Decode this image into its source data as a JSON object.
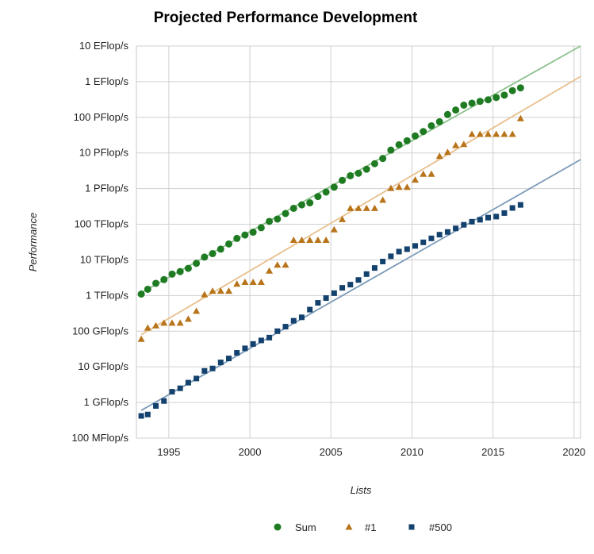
{
  "chart_data": {
    "type": "scatter",
    "title": "Projected Performance Development",
    "xlabel": "Lists",
    "ylabel": "Performance",
    "xlim": [
      1993,
      2020.4
    ],
    "y_scale": "log",
    "y_unit": "GFlop/s",
    "ylim": [
      0.1,
      10000000000
    ],
    "x_ticks": [
      1995,
      2000,
      2005,
      2010,
      2015,
      2020
    ],
    "y_ticks": [
      {
        "value": 10000000000,
        "label": "10 EFlop/s"
      },
      {
        "value": 1000000000,
        "label": "1 EFlop/s"
      },
      {
        "value": 100000000,
        "label": "100 PFlop/s"
      },
      {
        "value": 10000000,
        "label": "10 PFlop/s"
      },
      {
        "value": 1000000,
        "label": "1 PFlop/s"
      },
      {
        "value": 100000,
        "label": "100 TFlop/s"
      },
      {
        "value": 10000,
        "label": "10 TFlop/s"
      },
      {
        "value": 1000,
        "label": "1 TFlop/s"
      },
      {
        "value": 100,
        "label": "100 GFlop/s"
      },
      {
        "value": 10,
        "label": "10 GFlop/s"
      },
      {
        "value": 1,
        "label": "1 GFlop/s"
      },
      {
        "value": 0.1,
        "label": "100 MFlop/s"
      }
    ],
    "grid": true,
    "legend_position": "bottom",
    "series": [
      {
        "name": "Sum",
        "marker": "circle",
        "color": "#1e7b22",
        "x": [
          1993.3,
          1993.7,
          1994.2,
          1994.7,
          1995.2,
          1995.7,
          1996.2,
          1996.7,
          1997.2,
          1997.7,
          1998.2,
          1998.7,
          1999.2,
          1999.7,
          2000.2,
          2000.7,
          2001.2,
          2001.7,
          2002.2,
          2002.7,
          2003.2,
          2003.7,
          2004.2,
          2004.7,
          2005.2,
          2005.7,
          2006.2,
          2006.7,
          2007.2,
          2007.7,
          2008.2,
          2008.7,
          2009.2,
          2009.7,
          2010.2,
          2010.7,
          2011.2,
          2011.7,
          2012.2,
          2012.7,
          2013.2,
          2013.7,
          2014.2,
          2014.7,
          2015.2,
          2015.7,
          2016.2,
          2016.7
        ],
        "y": [
          1100,
          1500,
          2200,
          2800,
          4000,
          4700,
          5800,
          8000,
          12000,
          15000,
          20000,
          28000,
          40000,
          50000,
          60000,
          80000,
          120000,
          140000,
          200000,
          280000,
          350000,
          400000,
          600000,
          800000,
          1100000,
          1700000,
          2300000,
          2700000,
          3500000,
          5000000,
          7000000,
          12000000,
          17000000,
          22000000,
          30000000,
          40000000,
          58000000,
          75000000,
          120000000,
          160000000,
          220000000,
          250000000,
          280000000,
          310000000,
          360000000,
          420000000,
          560000000,
          670000000
        ],
        "fit": [
          [
            1993.3,
            1200
          ],
          [
            2020.4,
            10000000000
          ]
        ]
      },
      {
        "name": "#1",
        "marker": "triangle",
        "color": "#b8741a",
        "x": [
          1993.3,
          1993.7,
          1994.2,
          1994.7,
          1995.2,
          1995.7,
          1996.2,
          1996.7,
          1997.2,
          1997.7,
          1998.2,
          1998.7,
          1999.2,
          1999.7,
          2000.2,
          2000.7,
          2001.2,
          2001.7,
          2002.2,
          2002.7,
          2003.2,
          2003.7,
          2004.2,
          2004.7,
          2005.2,
          2005.7,
          2006.2,
          2006.7,
          2007.2,
          2007.7,
          2008.2,
          2008.7,
          2009.2,
          2009.7,
          2010.2,
          2010.7,
          2011.2,
          2011.7,
          2012.2,
          2012.7,
          2013.2,
          2013.7,
          2014.2,
          2014.7,
          2015.2,
          2015.7,
          2016.2,
          2016.7
        ],
        "y": [
          60,
          124,
          143,
          170,
          170,
          170,
          220,
          368,
          1068,
          1338,
          1338,
          1338,
          2121,
          2379,
          2379,
          2379,
          4938,
          7226,
          7226,
          35860,
          35860,
          35860,
          35860,
          35860,
          70720,
          136800,
          280600,
          280600,
          280600,
          280600,
          478200,
          1026000,
          1105000,
          1105000,
          1759000,
          2566000,
          2566000,
          8162000,
          10510000,
          16320000,
          17590000,
          33860000,
          33860000,
          33860000,
          33860000,
          33860000,
          33860000,
          93010000
        ],
        "fit": [
          [
            1993.3,
            80
          ],
          [
            2020.4,
            1400000000
          ]
        ]
      },
      {
        "name": "#500",
        "marker": "square",
        "color": "#14426e",
        "x": [
          1993.3,
          1993.7,
          1994.2,
          1994.7,
          1995.2,
          1995.7,
          1996.2,
          1996.7,
          1997.2,
          1997.7,
          1998.2,
          1998.7,
          1999.2,
          1999.7,
          2000.2,
          2000.7,
          2001.2,
          2001.7,
          2002.2,
          2002.7,
          2003.2,
          2003.7,
          2004.2,
          2004.7,
          2005.2,
          2005.7,
          2006.2,
          2006.7,
          2007.2,
          2007.7,
          2008.2,
          2008.7,
          2009.2,
          2009.7,
          2010.2,
          2010.7,
          2011.2,
          2011.7,
          2012.2,
          2012.7,
          2013.2,
          2013.7,
          2014.2,
          2014.7,
          2015.2,
          2015.7,
          2016.2,
          2016.7
        ],
        "y": [
          0.42,
          0.46,
          0.8,
          1.1,
          2.0,
          2.5,
          3.6,
          4.7,
          7.7,
          9.0,
          13.3,
          17.2,
          24.7,
          33.0,
          43.8,
          55.0,
          66.0,
          100.0,
          134.0,
          196.0,
          245.0,
          403.0,
          624.0,
          851.0,
          1166.0,
          1646.0,
          2026.0,
          2736.0,
          4005.0,
          5929.0,
          9000.0,
          12640.0,
          17100.0,
          20000.0,
          24670.0,
          31120.0,
          40190.0,
          50940.0,
          60800.0,
          76500.0,
          96620.0,
          117800.0,
          133700.0,
          153400.0,
          164000.0,
          206300.0,
          286100.0,
          349300.0
        ],
        "fit": [
          [
            1993.3,
            0.6
          ],
          [
            2020.4,
            6500000
          ]
        ]
      }
    ]
  }
}
